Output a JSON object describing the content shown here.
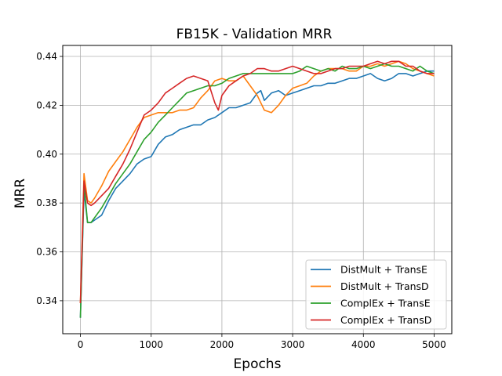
{
  "chart_data": {
    "type": "line",
    "title": "FB15K - Validation MRR",
    "xlabel": "Epochs",
    "ylabel": "MRR",
    "xlim": [
      -250,
      5250
    ],
    "ylim": [
      0.3265,
      0.4445
    ],
    "xticks": [
      0,
      1000,
      2000,
      3000,
      4000,
      5000
    ],
    "xtick_labels": [
      "0",
      "1000",
      "2000",
      "3000",
      "4000",
      "5000"
    ],
    "yticks": [
      0.34,
      0.36,
      0.38,
      0.4,
      0.42,
      0.44
    ],
    "ytick_labels": [
      "0.34",
      "0.36",
      "0.38",
      "0.40",
      "0.42",
      "0.44"
    ],
    "grid": true,
    "legend_position": "lower-right",
    "series": [
      {
        "name": "DistMult + TransE",
        "color": "#1f77b4",
        "x": [
          0,
          50,
          100,
          150,
          200,
          300,
          400,
          500,
          600,
          700,
          800,
          900,
          1000,
          1100,
          1200,
          1300,
          1400,
          1500,
          1600,
          1700,
          1800,
          1900,
          2000,
          2100,
          2200,
          2300,
          2400,
          2500,
          2550,
          2600,
          2700,
          2800,
          2900,
          3000,
          3100,
          3200,
          3300,
          3400,
          3500,
          3600,
          3700,
          3800,
          3900,
          4000,
          4100,
          4200,
          4300,
          4400,
          4500,
          4600,
          4700,
          4800,
          4900,
          5000
        ],
        "y": [
          0.333,
          0.385,
          0.372,
          0.372,
          0.373,
          0.375,
          0.381,
          0.386,
          0.389,
          0.392,
          0.396,
          0.398,
          0.399,
          0.404,
          0.407,
          0.408,
          0.41,
          0.411,
          0.412,
          0.412,
          0.414,
          0.415,
          0.417,
          0.419,
          0.419,
          0.42,
          0.421,
          0.425,
          0.426,
          0.422,
          0.425,
          0.426,
          0.424,
          0.425,
          0.426,
          0.427,
          0.428,
          0.428,
          0.429,
          0.429,
          0.43,
          0.431,
          0.431,
          0.432,
          0.433,
          0.431,
          0.43,
          0.431,
          0.433,
          0.433,
          0.432,
          0.433,
          0.434,
          0.434
        ]
      },
      {
        "name": "DistMult + TransD",
        "color": "#ff7f0e",
        "x": [
          0,
          50,
          100,
          150,
          200,
          300,
          400,
          500,
          600,
          700,
          800,
          900,
          1000,
          1100,
          1200,
          1300,
          1400,
          1500,
          1600,
          1700,
          1800,
          1900,
          2000,
          2100,
          2200,
          2300,
          2400,
          2500,
          2600,
          2700,
          2800,
          2900,
          3000,
          3100,
          3200,
          3300,
          3400,
          3500,
          3600,
          3700,
          3800,
          3900,
          4000,
          4100,
          4200,
          4300,
          4400,
          4500,
          4600,
          4700,
          4800,
          4900,
          5000
        ],
        "y": [
          0.339,
          0.392,
          0.381,
          0.38,
          0.382,
          0.387,
          0.393,
          0.397,
          0.401,
          0.406,
          0.411,
          0.415,
          0.416,
          0.417,
          0.417,
          0.417,
          0.418,
          0.418,
          0.419,
          0.423,
          0.426,
          0.43,
          0.431,
          0.43,
          0.43,
          0.432,
          0.428,
          0.424,
          0.418,
          0.417,
          0.42,
          0.424,
          0.427,
          0.428,
          0.429,
          0.432,
          0.434,
          0.435,
          0.435,
          0.435,
          0.434,
          0.434,
          0.436,
          0.436,
          0.437,
          0.436,
          0.437,
          0.438,
          0.437,
          0.435,
          0.434,
          0.433,
          0.432
        ]
      },
      {
        "name": "ComplEx + TransE",
        "color": "#2ca02c",
        "x": [
          0,
          50,
          100,
          150,
          200,
          300,
          400,
          500,
          600,
          700,
          800,
          900,
          1000,
          1100,
          1200,
          1300,
          1400,
          1500,
          1600,
          1700,
          1800,
          1900,
          2000,
          2100,
          2200,
          2300,
          2400,
          2500,
          2600,
          2700,
          2800,
          2900,
          3000,
          3100,
          3200,
          3300,
          3400,
          3500,
          3600,
          3700,
          3800,
          3900,
          4000,
          4100,
          4200,
          4300,
          4400,
          4500,
          4600,
          4700,
          4800,
          4900,
          5000
        ],
        "y": [
          0.333,
          0.388,
          0.372,
          0.372,
          0.374,
          0.378,
          0.383,
          0.388,
          0.392,
          0.396,
          0.401,
          0.406,
          0.409,
          0.413,
          0.416,
          0.419,
          0.422,
          0.425,
          0.426,
          0.427,
          0.428,
          0.428,
          0.429,
          0.431,
          0.432,
          0.433,
          0.433,
          0.433,
          0.433,
          0.433,
          0.433,
          0.433,
          0.433,
          0.434,
          0.436,
          0.435,
          0.434,
          0.435,
          0.434,
          0.436,
          0.435,
          0.435,
          0.436,
          0.435,
          0.436,
          0.437,
          0.436,
          0.436,
          0.435,
          0.434,
          0.436,
          0.434,
          0.433
        ]
      },
      {
        "name": "ComplEx + TransD",
        "color": "#d62728",
        "x": [
          0,
          50,
          100,
          150,
          200,
          300,
          400,
          500,
          600,
          700,
          800,
          900,
          1000,
          1100,
          1200,
          1300,
          1400,
          1500,
          1600,
          1700,
          1800,
          1900,
          1950,
          2000,
          2100,
          2200,
          2300,
          2400,
          2500,
          2600,
          2700,
          2800,
          2900,
          3000,
          3100,
          3200,
          3300,
          3400,
          3500,
          3600,
          3700,
          3800,
          3900,
          4000,
          4100,
          4200,
          4300,
          4400,
          4500,
          4600,
          4700,
          4800,
          4900,
          5000
        ],
        "y": [
          0.339,
          0.389,
          0.38,
          0.379,
          0.38,
          0.383,
          0.386,
          0.391,
          0.396,
          0.402,
          0.409,
          0.416,
          0.418,
          0.421,
          0.425,
          0.427,
          0.429,
          0.431,
          0.432,
          0.431,
          0.43,
          0.421,
          0.418,
          0.424,
          0.428,
          0.43,
          0.432,
          0.433,
          0.435,
          0.435,
          0.434,
          0.434,
          0.435,
          0.436,
          0.435,
          0.434,
          0.433,
          0.433,
          0.434,
          0.435,
          0.435,
          0.436,
          0.436,
          0.436,
          0.437,
          0.438,
          0.437,
          0.438,
          0.438,
          0.436,
          0.436,
          0.434,
          0.433,
          0.433
        ]
      }
    ]
  }
}
